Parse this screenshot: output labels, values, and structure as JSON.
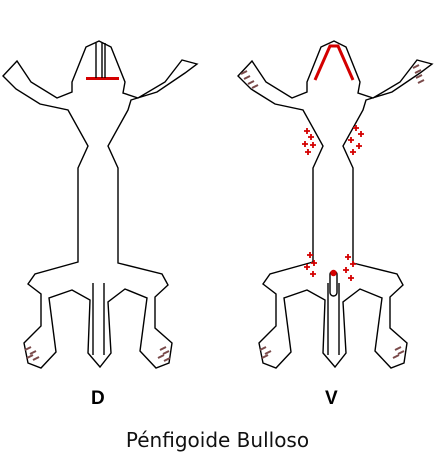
{
  "views": [
    {
      "id": "dorsal",
      "label": "D"
    },
    {
      "id": "ventral",
      "label": "V"
    }
  ],
  "caption": "Pénfigoide Bulloso",
  "colors": {
    "lesion": "#d40000",
    "lesion_dark": "#8c1010",
    "crust": "#7a4a4a",
    "outline": "#000000"
  },
  "icons": {
    "lesion_marker": "plus-sign",
    "paw_lesion": "hatched-patch"
  }
}
